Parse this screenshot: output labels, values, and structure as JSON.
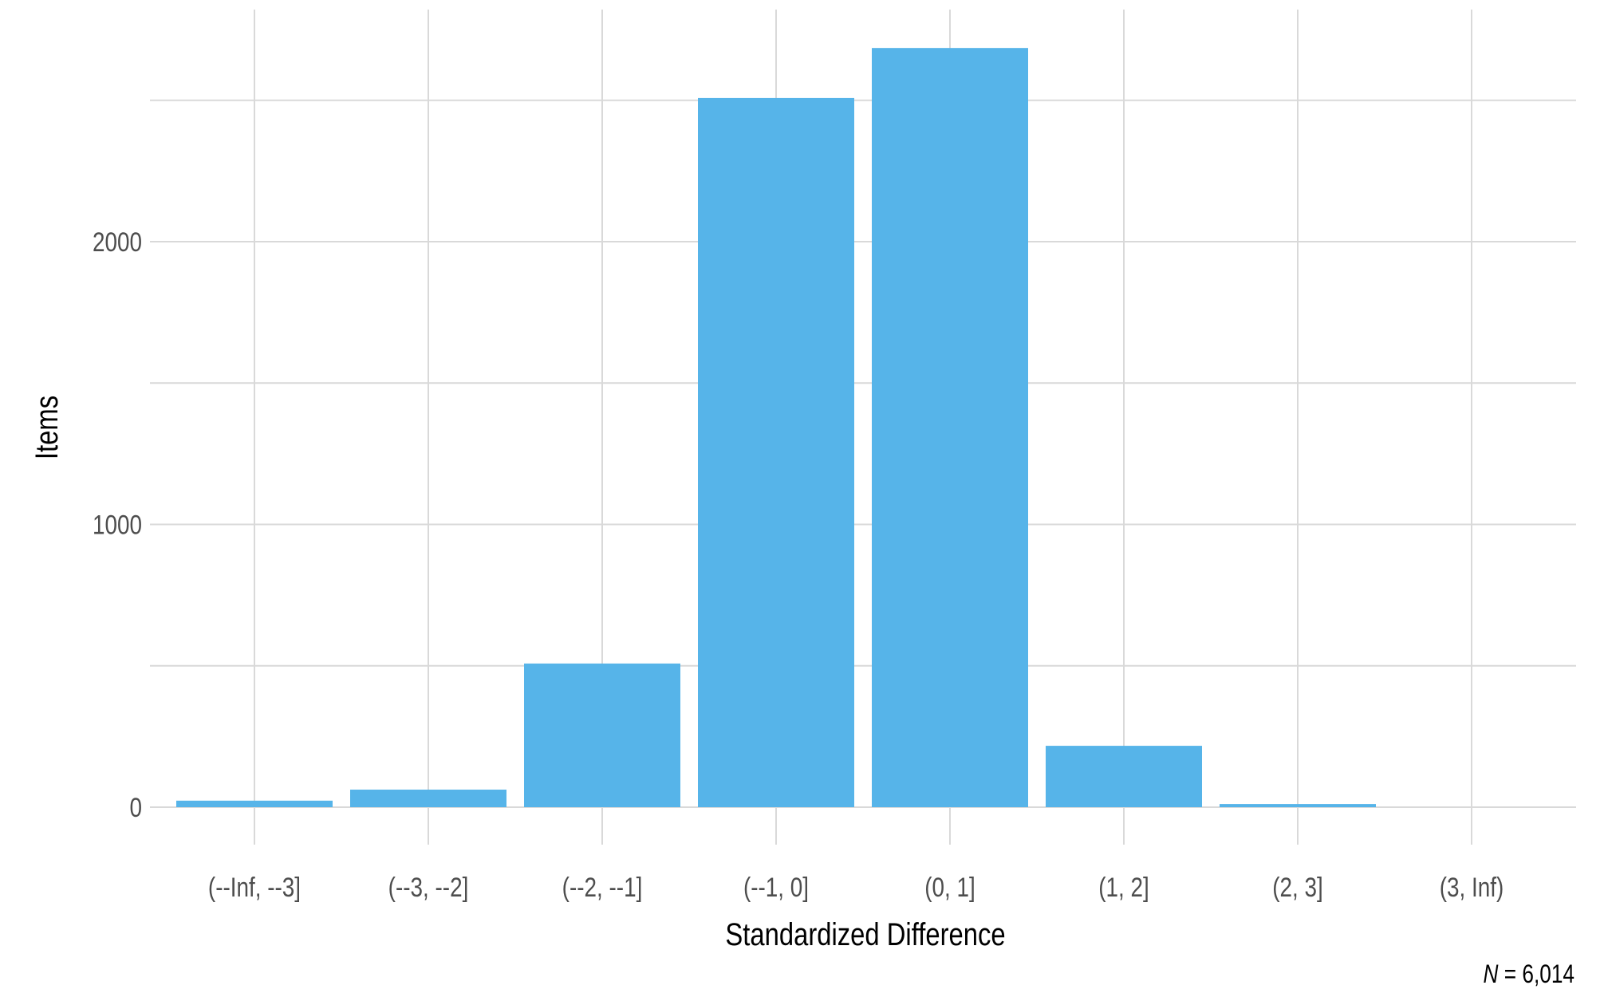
{
  "chart_data": {
    "type": "bar",
    "title": "",
    "xlabel": "Standardized Difference",
    "ylabel": "Items",
    "caption": "N = 6,014",
    "caption_n": "N",
    "caption_rest": " = 6,014",
    "categories": [
      "(--Inf, --3]",
      "(--3, --2]",
      "(--2, --1]",
      "(--1, 0]",
      "(0, 1]",
      "(1, 2]",
      "(2, 3]",
      "(3, Inf)"
    ],
    "values": [
      23,
      62,
      508,
      2508,
      2685,
      217,
      11,
      0
    ],
    "ylim": [
      0,
      2700
    ],
    "yticks": [
      0,
      1000,
      2000
    ],
    "ytick_labels": [
      "0",
      "1000",
      "2000"
    ],
    "minor_gridlines": [
      500,
      1500,
      2500
    ],
    "grid": true,
    "legend": "none",
    "bar_color": "#56B4E9"
  }
}
